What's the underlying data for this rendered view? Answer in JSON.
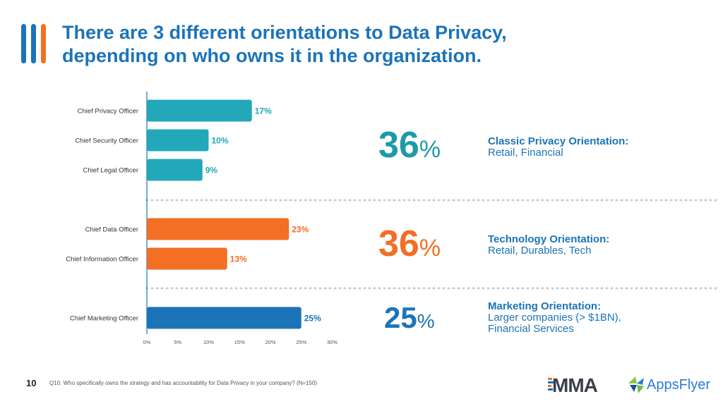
{
  "header": {
    "title_line1": "There are 3 different orientations to Data Privacy,",
    "title_line2": "depending on who owns it in the organization."
  },
  "chart_data": {
    "type": "bar",
    "orientation": "horizontal",
    "categories": [
      "Chief Privacy Officer",
      "Chief Security Officer",
      "Chief Legal Officer",
      "Chief Data Officer",
      "Chief Information Officer",
      "Chief Marketing Officer"
    ],
    "values": [
      17,
      10,
      9,
      23,
      13,
      25
    ],
    "groups": [
      "Classic Privacy",
      "Classic Privacy",
      "Classic Privacy",
      "Technology",
      "Technology",
      "Marketing"
    ],
    "value_labels": [
      "17%",
      "10%",
      "9%",
      "23%",
      "13%",
      "25%"
    ],
    "xticks": [
      0,
      5,
      10,
      15,
      20,
      25,
      30
    ],
    "xtick_labels": [
      "0%",
      "5%",
      "10%",
      "15%",
      "20%",
      "25%",
      "30%"
    ],
    "xlim": [
      0,
      30
    ],
    "colors": {
      "Classic Privacy": "#22a8b8",
      "Technology": "#f26f24",
      "Marketing": "#1b74b8"
    }
  },
  "orientations": [
    {
      "stat": "36",
      "pct": "%",
      "heading": "Classic Privacy Orientation:",
      "line1": "Retail, Financial",
      "line2": ""
    },
    {
      "stat": "36",
      "pct": "%",
      "heading": "Technology Orientation:",
      "line1": "Retail, Durables, Tech",
      "line2": ""
    },
    {
      "stat": "25",
      "pct": "%",
      "heading": "Marketing Orientation:",
      "line1": "Larger companies (> $1BN),",
      "line2": "Financial Services"
    }
  ],
  "footer": {
    "page_number": "10",
    "footnote": "Q10. Who specifically owns the strategy and has accountability for Data Privacy in your company? (N=150)",
    "logo_mma": "MMA",
    "logo_appsflyer": "AppsFlyer"
  },
  "colors": {
    "brand_blue": "#1b74b8",
    "teal": "#22a8b8",
    "orange": "#f26f24"
  }
}
